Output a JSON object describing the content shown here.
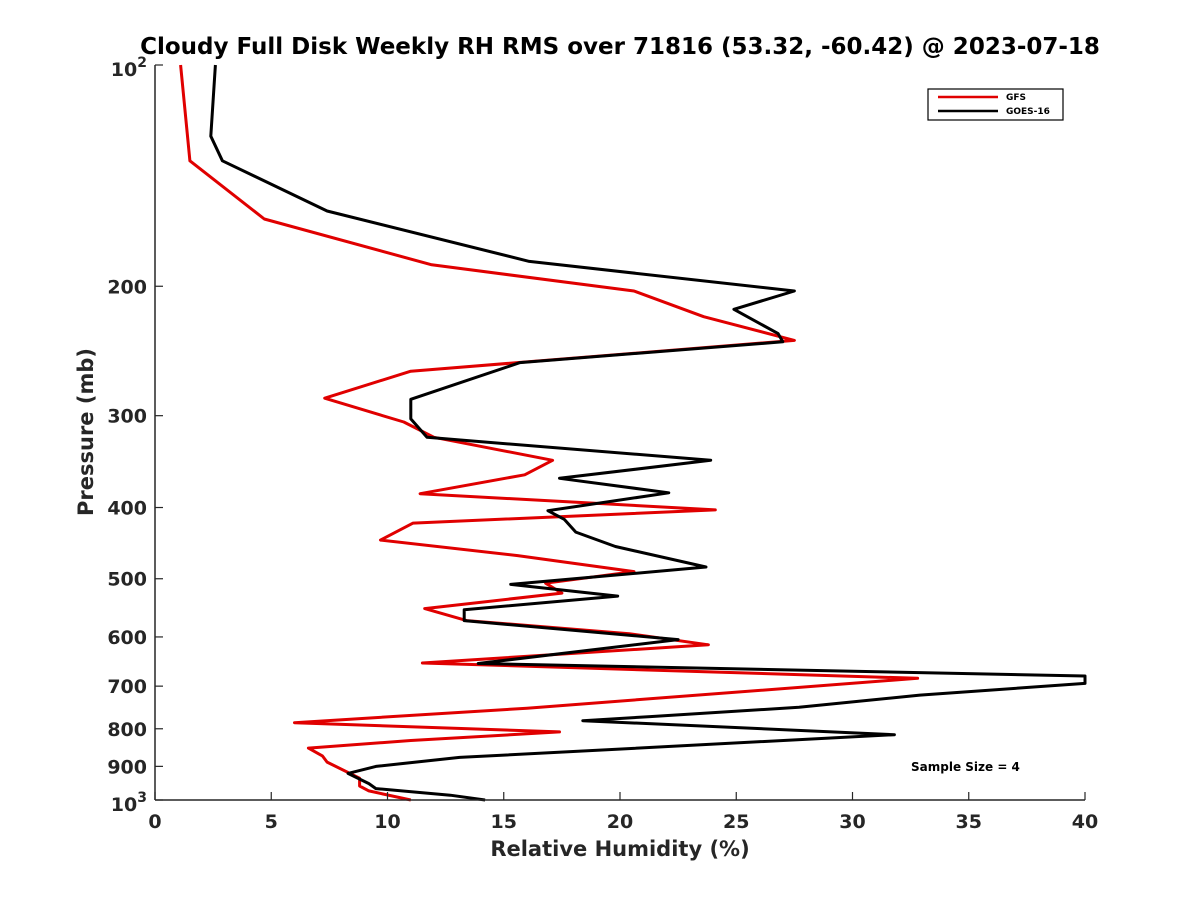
{
  "chart_data": {
    "type": "line",
    "title": "Cloudy Full Disk Weekly RH RMS over 71816 (53.32, -60.42) @ 2023-07-18",
    "xlabel": "Relative Humidity (%)",
    "ylabel": "Pressure (mb)",
    "xlim": [
      0,
      40
    ],
    "ylim": [
      100,
      1000
    ],
    "y_scale": "log",
    "y_reversed": true,
    "xticks": [
      0,
      5,
      10,
      15,
      20,
      25,
      30,
      35,
      40
    ],
    "xtick_labels": [
      "0",
      "5",
      "10",
      "15",
      "20",
      "25",
      "30",
      "35",
      "40"
    ],
    "yticks": [
      100,
      200,
      300,
      400,
      500,
      600,
      700,
      800,
      900,
      1000
    ],
    "ytick_labels": [
      {
        "base": "10",
        "exp": "2"
      },
      {
        "base": "200"
      },
      {
        "base": "300"
      },
      {
        "base": "400"
      },
      {
        "base": "500"
      },
      {
        "base": "600"
      },
      {
        "base": "700"
      },
      {
        "base": "800"
      },
      {
        "base": "900"
      },
      {
        "base": "10",
        "exp": "3"
      }
    ],
    "grid": false,
    "legend_position": "top-right",
    "annotation": "Sample Size = 4",
    "series": [
      {
        "name": "GFS",
        "color": "#e00000",
        "points": [
          [
            1.1,
            100
          ],
          [
            1.5,
            135
          ],
          [
            4.7,
            162
          ],
          [
            11.9,
            187
          ],
          [
            20.6,
            203
          ],
          [
            23.6,
            220
          ],
          [
            27.5,
            237
          ],
          [
            11.0,
            261
          ],
          [
            7.3,
            284
          ],
          [
            10.7,
            306
          ],
          [
            12.0,
            321
          ],
          [
            17.1,
            345
          ],
          [
            15.9,
            361
          ],
          [
            11.4,
            383
          ],
          [
            24.1,
            403
          ],
          [
            11.1,
            420
          ],
          [
            9.7,
            443
          ],
          [
            15.6,
            465
          ],
          [
            20.6,
            489
          ],
          [
            16.8,
            507
          ],
          [
            17.5,
            523
          ],
          [
            11.6,
            549
          ],
          [
            13.4,
            570
          ],
          [
            20.4,
            594
          ],
          [
            23.8,
            615
          ],
          [
            11.5,
            651
          ],
          [
            32.8,
            683
          ],
          [
            16.0,
            750
          ],
          [
            6.0,
            785
          ],
          [
            17.4,
            808
          ],
          [
            11.0,
            830
          ],
          [
            6.6,
            850
          ],
          [
            7.2,
            871
          ],
          [
            7.4,
            888
          ],
          [
            8.8,
            934
          ],
          [
            8.8,
            957
          ],
          [
            9.2,
            972
          ],
          [
            11.0,
            1000
          ]
        ]
      },
      {
        "name": "GOES-16",
        "color": "#000000",
        "points": [
          [
            2.6,
            100
          ],
          [
            2.4,
            125
          ],
          [
            2.9,
            135
          ],
          [
            7.4,
            158
          ],
          [
            16.1,
            185
          ],
          [
            27.5,
            203
          ],
          [
            24.9,
            215
          ],
          [
            26.8,
            232
          ],
          [
            27.0,
            238
          ],
          [
            15.7,
            254
          ],
          [
            11.0,
            285
          ],
          [
            11.0,
            303
          ],
          [
            11.7,
            321
          ],
          [
            23.9,
            345
          ],
          [
            17.4,
            365
          ],
          [
            22.1,
            382
          ],
          [
            16.9,
            404
          ],
          [
            17.6,
            415
          ],
          [
            18.1,
            432
          ],
          [
            19.8,
            452
          ],
          [
            23.7,
            482
          ],
          [
            15.3,
            509
          ],
          [
            19.9,
            528
          ],
          [
            13.3,
            551
          ],
          [
            13.3,
            570
          ],
          [
            22.5,
            605
          ],
          [
            13.9,
            652
          ],
          [
            40.0,
            678
          ],
          [
            40.0,
            694
          ],
          [
            32.9,
            720
          ],
          [
            27.7,
            748
          ],
          [
            21.3,
            770
          ],
          [
            18.4,
            780
          ],
          [
            31.8,
            815
          ],
          [
            13.1,
            875
          ],
          [
            9.5,
            900
          ],
          [
            8.3,
            920
          ],
          [
            9.2,
            950
          ],
          [
            9.5,
            965
          ],
          [
            12.7,
            985
          ],
          [
            14.2,
            1000
          ]
        ]
      }
    ]
  }
}
